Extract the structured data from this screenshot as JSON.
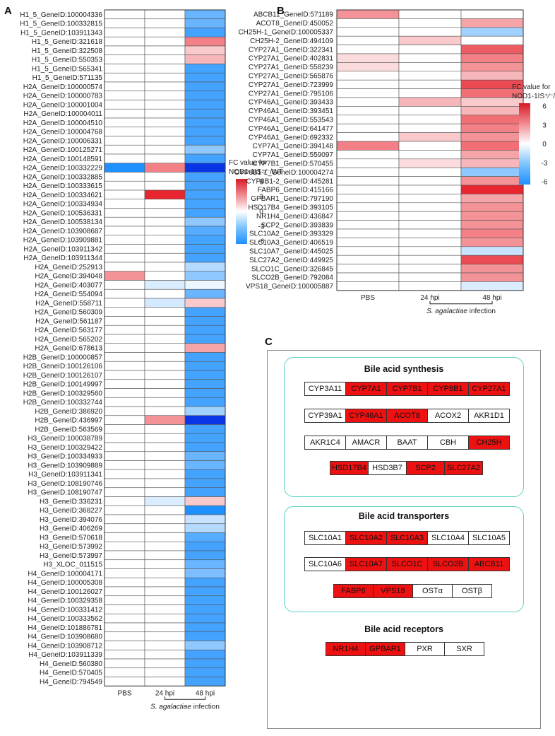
{
  "panel_labels": [
    "A",
    "B",
    "C"
  ],
  "colors": {
    "max": "#e8262f",
    "mid": "#ffffff",
    "min": "#1e90ff",
    "extreme_low": "#0a35e6",
    "gene_box_on": "#ee1111"
  },
  "chart_data": [
    {
      "type": "heatmap",
      "panel": "A",
      "columns": [
        "PBS",
        "24 hpi",
        "48 hpi"
      ],
      "xlabel_prefix": "S. agalactiae",
      "xlabel_suffix": " infection",
      "legend_title_line1": "FC value for",
      "legend_title_line2": "NOD1-1IS⁺∕⁻/WT",
      "legend_ticks": [
        "6",
        "3",
        "0",
        "-3",
        "-6"
      ],
      "scale_range": [
        -6,
        6
      ],
      "rows": [
        "H1_5_GeneID:100004336",
        "H1_5_GeneID:100332815",
        "H1_5_GeneID:103911343",
        "H1_5_GeneID:321618",
        "H1_5_GeneID:322508",
        "H1_5_GeneID:550353",
        "H1_5_GeneID:565341",
        "H1_5_GeneID:571135",
        "H2A_GeneID:100000574",
        "H2A_GeneID:100000783",
        "H2A_GeneID:100001004",
        "H2A_GeneID:100004011",
        "H2A_GeneID:100004510",
        "H2A_GeneID:100004768",
        "H2A_GeneID:100006331",
        "H2A_GeneID:100125271",
        "H2A_GeneID:100148591",
        "H2A_GeneID:100332229",
        "H2A_GeneID:100332885",
        "H2A_GeneID:100333615",
        "H2A_GeneID:100334621",
        "H2A_GeneID:100334934",
        "H2A_GeneID:100536331",
        "H2A_GeneID:100538134",
        "H2A_GeneID:103908687",
        "H2A_GeneID:103909881",
        "H2A_GeneID:103911342",
        "H2A_GeneID:103911344",
        "H2A_GeneID:252913",
        "H2A_GeneID:394048",
        "H2A_GeneID:403077",
        "H2A_GeneID:554094",
        "H2A_GeneID:558711",
        "H2A_GeneID:560309",
        "H2A_GeneID:561187",
        "H2A_GeneID:563177",
        "H2A_GeneID:565202",
        "H2A_GeneID:678613",
        "H2B_GeneID:100000857",
        "H2B_GeneID:100126106",
        "H2B_GeneID:100126107",
        "H2B_GeneID:100149997",
        "H2B_GeneID:100329560",
        "H2B_GeneID:100332744",
        "H2B_GeneID:386920",
        "H2B_GeneID:436997",
        "H2B_GeneID:563569",
        "H3_GeneID:100038789",
        "H3_GeneID:100329422",
        "H3_GeneID:100334933",
        "H3_GeneID:103909889",
        "H3_GeneID:103911341",
        "H3_GeneID:108190746",
        "H3_GeneID:108190747",
        "H3_GeneID:336231",
        "H3_GeneID:368227",
        "H3_GeneID:394076",
        "H3_GeneID:406269",
        "H3_GeneID:570618",
        "H3_GeneID:573992",
        "H3_GeneID:573997",
        "H3_XLOC_011515",
        "H4_GeneID:100004171",
        "H4_GeneID:100005308",
        "H4_GeneID:100126027",
        "H4_GeneID:100329358",
        "H4_GeneID:100331412",
        "H4_GeneID:100333562",
        "H4_GeneID:101886781",
        "H4_GeneID:103908680",
        "H4_GeneID:103908712",
        "H4_GeneID:103911339",
        "H4_GeneID:560380",
        "H4_GeneID:570405",
        "H4_GeneID:794549"
      ],
      "values": [
        [
          0,
          0,
          -4
        ],
        [
          0,
          0,
          -4
        ],
        [
          0,
          0,
          -5
        ],
        [
          0,
          0,
          3.5
        ],
        [
          0,
          0,
          1.5
        ],
        [
          0,
          0,
          2
        ],
        [
          0,
          0,
          -5
        ],
        [
          0,
          0,
          -5
        ],
        [
          0,
          0,
          -5
        ],
        [
          0,
          0,
          -5
        ],
        [
          0,
          0,
          -5
        ],
        [
          0,
          0,
          -5
        ],
        [
          0,
          0,
          -5
        ],
        [
          0,
          0,
          -5
        ],
        [
          0,
          0,
          -5
        ],
        [
          0,
          0,
          -3
        ],
        [
          0,
          0,
          -5
        ],
        [
          -6,
          3.5,
          -8
        ],
        [
          0,
          0,
          -5
        ],
        [
          0,
          0,
          -5
        ],
        [
          0,
          6,
          -5
        ],
        [
          0,
          0,
          -5
        ],
        [
          0,
          0,
          -5
        ],
        [
          0,
          0,
          -3
        ],
        [
          0,
          0,
          -4.5
        ],
        [
          0,
          0,
          -5
        ],
        [
          0,
          0,
          -5
        ],
        [
          0,
          0,
          -5
        ],
        [
          0,
          0,
          -2
        ],
        [
          3,
          0,
          -3
        ],
        [
          0,
          -1,
          -0.5
        ],
        [
          0,
          0,
          -4
        ],
        [
          0,
          -1.2,
          1.5
        ],
        [
          0,
          0,
          -5
        ],
        [
          0,
          0,
          -5
        ],
        [
          0,
          0,
          -5
        ],
        [
          0,
          0,
          -5
        ],
        [
          0,
          0,
          2.5
        ],
        [
          0,
          0,
          -5
        ],
        [
          0,
          0,
          -5
        ],
        [
          0,
          0,
          -5
        ],
        [
          0,
          0,
          -5
        ],
        [
          0,
          0,
          -5
        ],
        [
          0,
          0,
          -5
        ],
        [
          0,
          0,
          -2.5
        ],
        [
          0,
          3,
          -8
        ],
        [
          0,
          0,
          -5
        ],
        [
          0,
          0,
          -5
        ],
        [
          0,
          0,
          -5
        ],
        [
          0,
          0,
          -4
        ],
        [
          0,
          0,
          -4
        ],
        [
          0,
          0,
          -5
        ],
        [
          0,
          0,
          -5
        ],
        [
          0,
          0,
          -5
        ],
        [
          0,
          -1,
          1.5
        ],
        [
          0,
          0,
          -6
        ],
        [
          0,
          0,
          -1.5
        ],
        [
          0,
          0,
          -2
        ],
        [
          0,
          0,
          -4.5
        ],
        [
          0,
          0,
          -5
        ],
        [
          0,
          0,
          -5
        ],
        [
          0,
          0,
          -4
        ],
        [
          0,
          0,
          -3.5
        ],
        [
          0,
          0,
          -5
        ],
        [
          0,
          0,
          -5
        ],
        [
          0,
          0,
          -5
        ],
        [
          0,
          0,
          -5
        ],
        [
          0,
          0,
          -5
        ],
        [
          0,
          0,
          -5
        ],
        [
          0,
          0,
          -5
        ],
        [
          0,
          0,
          -3
        ],
        [
          0,
          0,
          -5
        ],
        [
          0,
          0,
          -5
        ],
        [
          0,
          0,
          -5
        ],
        [
          0,
          0,
          -5
        ]
      ]
    },
    {
      "type": "heatmap",
      "panel": "B",
      "columns": [
        "PBS",
        "24 hpi",
        "48 hpi"
      ],
      "xlabel_prefix": "S. agalactiae",
      "xlabel_suffix": " infection",
      "legend_title_line1": "FC value for",
      "legend_title_line2": "NOD1-1IS⁺∕⁻/WT",
      "legend_ticks": [
        "6",
        "3",
        "0",
        "-3",
        "-6"
      ],
      "scale_range": [
        -6,
        6
      ],
      "rows": [
        "ABCB11_GeneID:571189",
        "ACOT8_GeneID:450052",
        "CH25H-1_GeneID:100005337",
        "CH25H-2_GeneID:494109",
        "CYP27A1_GeneID:322341",
        "CYP27A1_GeneID:402831",
        "CYP27A1_GeneID:558239",
        "CYP27A1_GeneID:565876",
        "CYP27A1_GeneID:723999",
        "CYP27A1_GeneID:795106",
        "CYP46A1_GeneID:393433",
        "CYP46A1_GeneID:393451",
        "CYP46A1_GeneID:553543",
        "CYP46A1_GeneID:641477",
        "CYP46A1_GeneID:692332",
        "CYP7A1_GeneID:394148",
        "CYP7A1_GeneID:559097",
        "CYP7B1_GeneID:570455",
        "CYP8B1-1_GeneID:100004274",
        "CYP8B1-2_GeneID:445281",
        "FABP6_GeneID:415166",
        "GPBAR1_GeneID:797190",
        "HSD17B4_GeneID:393105",
        "NR1H4_GeneID:436847",
        "SCP2_GeneID:393839",
        "SLC10A2_GeneID:393329",
        "SLC10A3_GeneID:406519",
        "SLC10A7_GeneID:445025",
        "SLC27A2_GeneID:449925",
        "SLCO1C_GeneID:326845",
        "SLCO2B_GeneID:792084",
        "VPS18_GeneID:100005887"
      ],
      "values": [
        [
          3,
          0,
          0
        ],
        [
          0,
          0,
          2.5
        ],
        [
          0,
          0,
          -2.5
        ],
        [
          0,
          1.5,
          0
        ],
        [
          0,
          0,
          4.5
        ],
        [
          1,
          0,
          3.5
        ],
        [
          1,
          0,
          3
        ],
        [
          0,
          0,
          2
        ],
        [
          0,
          0,
          5
        ],
        [
          0,
          0,
          4
        ],
        [
          0,
          2,
          1.5
        ],
        [
          0,
          0,
          2
        ],
        [
          0,
          0,
          4
        ],
        [
          0,
          0,
          3.5
        ],
        [
          0,
          1.5,
          3
        ],
        [
          3.5,
          0,
          4
        ],
        [
          0,
          0,
          2.5
        ],
        [
          0,
          1,
          2
        ],
        [
          0,
          0,
          -3
        ],
        [
          0,
          0,
          3
        ],
        [
          0,
          0,
          6
        ],
        [
          0,
          0,
          2.5
        ],
        [
          0,
          0,
          3
        ],
        [
          0,
          0,
          3
        ],
        [
          0,
          0,
          3
        ],
        [
          0,
          0,
          3.5
        ],
        [
          0,
          0,
          3
        ],
        [
          0,
          0,
          -1.5
        ],
        [
          0,
          0,
          5
        ],
        [
          0,
          0,
          3
        ],
        [
          0,
          0,
          3
        ],
        [
          0,
          0,
          -1
        ]
      ]
    }
  ],
  "pathways": {
    "synthesis": {
      "title": "Bile acid synthesis",
      "rows": [
        [
          {
            "g": "CYP3A11",
            "on": false
          },
          {
            "g": "CYP7A1",
            "on": true
          },
          {
            "g": "CYP7B1",
            "on": true
          },
          {
            "g": "CYP8B1",
            "on": true
          },
          {
            "g": "CYP27A1",
            "on": true
          }
        ],
        [
          {
            "g": "CYP39A1",
            "on": false
          },
          {
            "g": "CYP46A1",
            "on": true
          },
          {
            "g": "ACOT8",
            "on": true
          },
          {
            "g": "ACOX2",
            "on": false
          },
          {
            "g": "AKR1D1",
            "on": false
          }
        ],
        [
          {
            "g": "AKR1C4",
            "on": false
          },
          {
            "g": "AMACR",
            "on": false
          },
          {
            "g": "BAAT",
            "on": false
          },
          {
            "g": "CBH",
            "on": false
          },
          {
            "g": "CH25H",
            "on": true
          }
        ],
        [
          {
            "g": "HSD17B4",
            "on": true
          },
          {
            "g": "HSD3B7",
            "on": false
          },
          {
            "g": "SCP2",
            "on": true
          },
          {
            "g": "SLC27A2",
            "on": true
          }
        ]
      ]
    },
    "transporters": {
      "title": "Bile acid  transporters",
      "rows": [
        [
          {
            "g": "SLC10A1",
            "on": false
          },
          {
            "g": "SLC10A2",
            "on": true
          },
          {
            "g": "SLC10A3",
            "on": true
          },
          {
            "g": "SLC10A4",
            "on": false
          },
          {
            "g": "SLC10A5",
            "on": false
          }
        ],
        [
          {
            "g": "SLC10A6",
            "on": false
          },
          {
            "g": "SLC10A7",
            "on": true
          },
          {
            "g": "SLCO1C",
            "on": true
          },
          {
            "g": "SLCO2B",
            "on": true
          },
          {
            "g": "ABCB11",
            "on": true
          }
        ],
        [
          {
            "g": "FABP6",
            "on": true
          },
          {
            "g": "VPS18",
            "on": true
          },
          {
            "g": "OSTα",
            "on": false
          },
          {
            "g": "OSTβ",
            "on": false
          }
        ]
      ]
    },
    "receptors": {
      "title": "Bile acid receptors",
      "rows": [
        [
          {
            "g": "NR1H4",
            "on": true
          },
          {
            "g": "GPBAR1",
            "on": true
          },
          {
            "g": "PXR",
            "on": false
          },
          {
            "g": "SXR",
            "on": false
          }
        ]
      ]
    }
  }
}
